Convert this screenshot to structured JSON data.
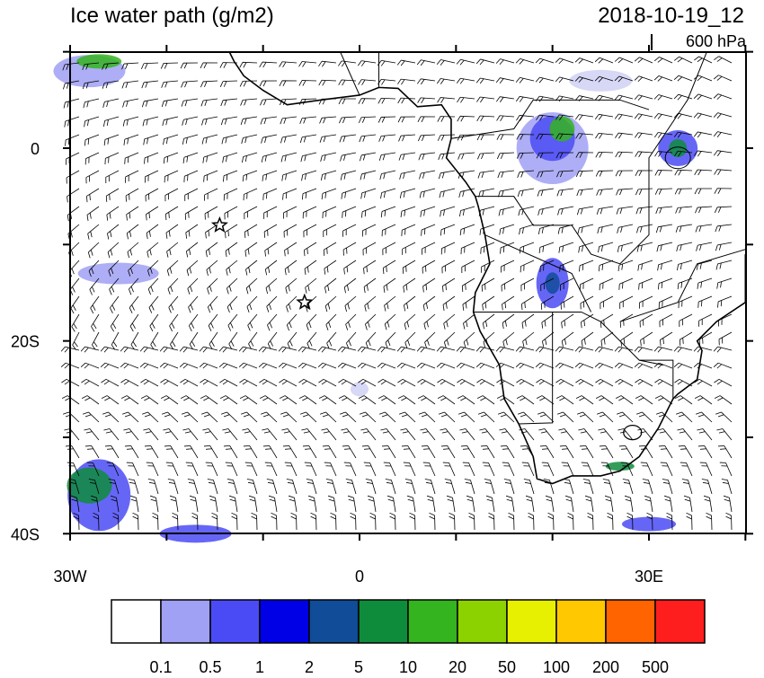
{
  "header": {
    "title": "Ice water path (g/m2)",
    "date": "2018-10-19_12",
    "level": "600 hPa"
  },
  "axes": {
    "y_labels": [
      "0",
      "20S",
      "40S"
    ],
    "x_labels": [
      "30W",
      "0",
      "30E"
    ]
  },
  "colorbar": {
    "labels": [
      "0.1",
      "0.5",
      "1",
      "2",
      "5",
      "10",
      "20",
      "50",
      "100",
      "200",
      "500"
    ],
    "colors": [
      "#ffffff",
      "#a0a0f5",
      "#4b4bf5",
      "#0000e6",
      "#104c98",
      "#0e8c3c",
      "#34b41e",
      "#8cd200",
      "#e6f000",
      "#ffc800",
      "#ff6400",
      "#ff1e1e"
    ]
  }
}
